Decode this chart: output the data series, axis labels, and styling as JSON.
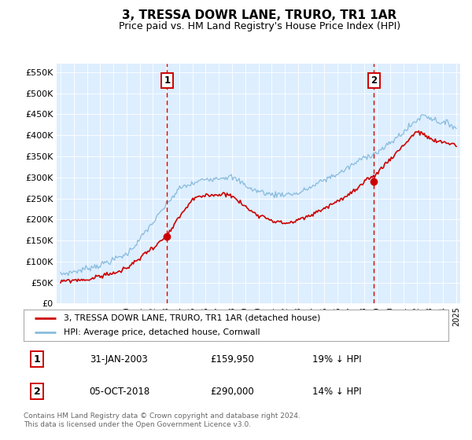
{
  "title": "3, TRESSA DOWR LANE, TRURO, TR1 1AR",
  "subtitle": "Price paid vs. HM Land Registry's House Price Index (HPI)",
  "bg_color": "#ddeeff",
  "sale1_date": 2003.08,
  "sale1_price": 159950,
  "sale1_label": "1",
  "sale1_display": "31-JAN-2003",
  "sale1_pct": "19% ↓ HPI",
  "sale2_date": 2018.75,
  "sale2_price": 290000,
  "sale2_label": "2",
  "sale2_display": "05-OCT-2018",
  "sale2_pct": "14% ↓ HPI",
  "legend_line1": "3, TRESSA DOWR LANE, TRURO, TR1 1AR (detached house)",
  "legend_line2": "HPI: Average price, detached house, Cornwall",
  "footer": "Contains HM Land Registry data © Crown copyright and database right 2024.\nThis data is licensed under the Open Government Licence v3.0.",
  "ylabel_ticks": [
    "£0",
    "£50K",
    "£100K",
    "£150K",
    "£200K",
    "£250K",
    "£300K",
    "£350K",
    "£400K",
    "£450K",
    "£500K",
    "£550K"
  ],
  "ylim": [
    0,
    570000
  ],
  "xlim_start": 1994.7,
  "xlim_end": 2025.3,
  "red_line_color": "#cc0000",
  "blue_line_color": "#88bbdd",
  "dashed_line_color": "#cc0000",
  "grid_color": "#ffffff",
  "title_fontsize": 11,
  "subtitle_fontsize": 9
}
